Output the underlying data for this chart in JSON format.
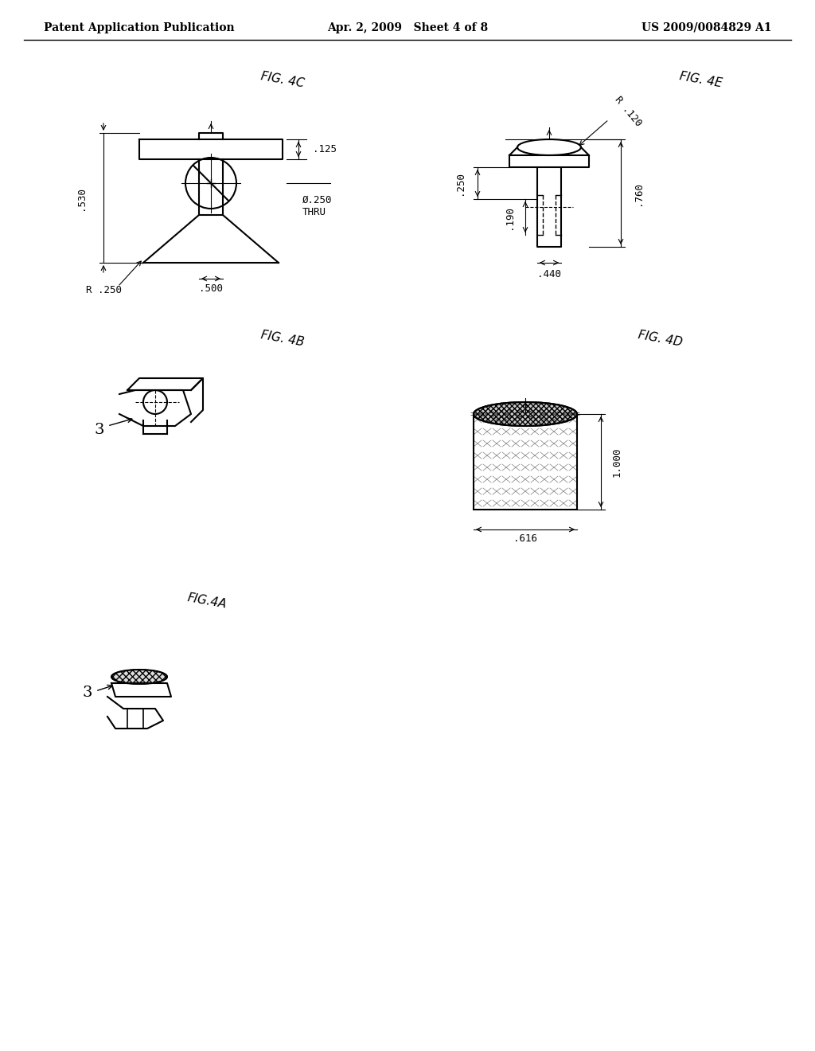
{
  "page_header_left": "Patent Application Publication",
  "page_header_center": "Apr. 2, 2009   Sheet 4 of 8",
  "page_header_right": "US 2009/0084829 A1",
  "background_color": "#ffffff",
  "line_color": "#000000",
  "figures": {
    "fig4C_label": "FIG. 4C",
    "fig4B_label": "FIG. 4B",
    "fig4D_label": "FIG. 4D",
    "fig4E_label": "FIG. 4E",
    "fig4A_label": "FIG.4A"
  },
  "dims_4C": {
    "530": ".530",
    "250": "R .250",
    "500": ".500",
    "125": ".125",
    "dia250": "Ø.250\nTHRU"
  },
  "dims_4E": {
    "760": ".760",
    "250": ".250",
    "190": ".190",
    "440": ".440",
    "r120": "R .120"
  },
  "dims_4D": {
    "1000": "1.000",
    "616": ".616"
  }
}
